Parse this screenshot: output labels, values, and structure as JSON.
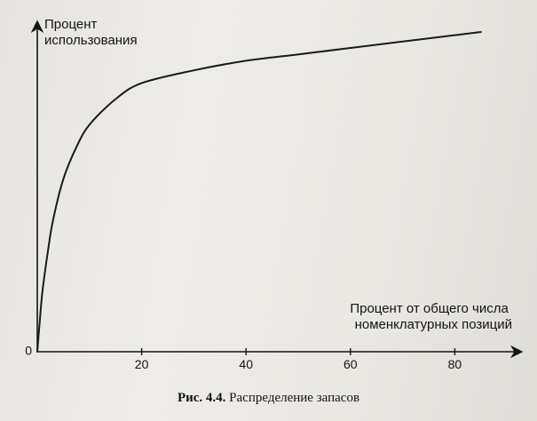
{
  "chart_data": {
    "type": "line",
    "title": "",
    "caption": {
      "number": "Рис. 4.4.",
      "text": "Распределение запасов"
    },
    "ylabel": [
      "Процент",
      "использования"
    ],
    "xlabel": [
      "Процент от общего числа",
      "номенклатурных позиций"
    ],
    "origin_label": "0",
    "xlim": [
      0,
      100
    ],
    "ylim": [
      0,
      100
    ],
    "x_ticks": [
      {
        "value": 20,
        "label": "20"
      },
      {
        "value": 40,
        "label": "40"
      },
      {
        "value": 60,
        "label": "60"
      },
      {
        "value": 80,
        "label": "80"
      }
    ],
    "grid": false,
    "series": [
      {
        "color": "#1a1a1a",
        "points": [
          {
            "x": 0,
            "y": 0
          },
          {
            "x": 0.5,
            "y": 10
          },
          {
            "x": 1,
            "y": 19
          },
          {
            "x": 2,
            "y": 31
          },
          {
            "x": 3,
            "y": 41
          },
          {
            "x": 5,
            "y": 54
          },
          {
            "x": 7.5,
            "y": 64
          },
          {
            "x": 10,
            "y": 71
          },
          {
            "x": 15,
            "y": 79
          },
          {
            "x": 20,
            "y": 84
          },
          {
            "x": 30,
            "y": 88
          },
          {
            "x": 40,
            "y": 91
          },
          {
            "x": 50,
            "y": 93
          },
          {
            "x": 60,
            "y": 95
          },
          {
            "x": 70,
            "y": 97
          },
          {
            "x": 80,
            "y": 99
          },
          {
            "x": 85,
            "y": 100
          }
        ]
      }
    ]
  }
}
